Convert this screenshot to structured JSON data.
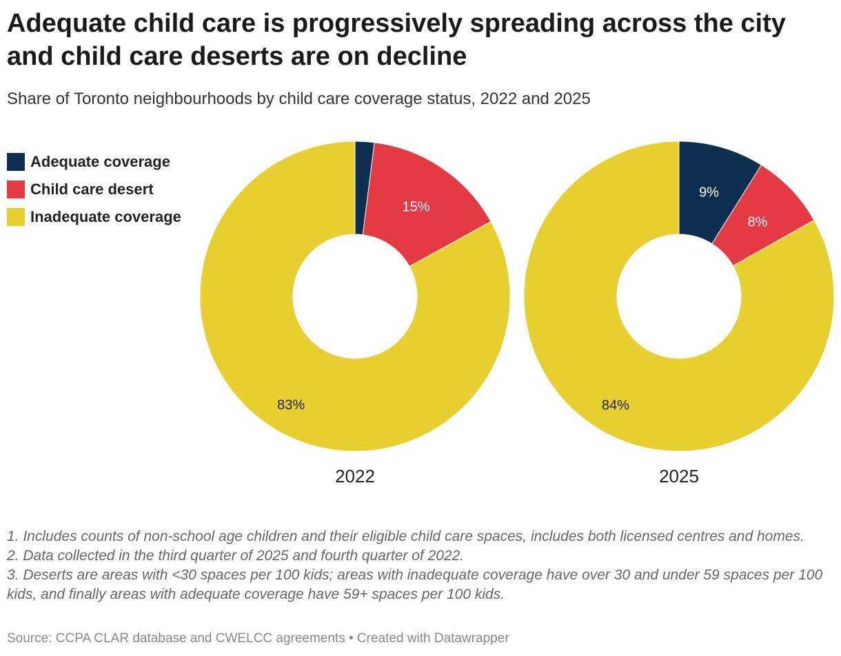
{
  "title": "Adequate child care is progressively spreading across the city and child care deserts are on decline",
  "subtitle": "Share of Toronto neighbourhoods by child care coverage status, 2022 and 2025",
  "legend": [
    {
      "label": "Adequate coverage",
      "color": "#0e2f4f"
    },
    {
      "label": "Child care desert",
      "color": "#e43a43"
    },
    {
      "label": "Inadequate coverage",
      "color": "#e7cf2f"
    }
  ],
  "chart_data": {
    "type": "pie",
    "variant": "donut",
    "categories": [
      "Adequate coverage",
      "Child care desert",
      "Inadequate coverage"
    ],
    "charts": [
      {
        "label": "2022",
        "values": [
          2,
          15,
          83
        ],
        "data_labels": [
          "",
          "15%",
          "83%"
        ]
      },
      {
        "label": "2025",
        "values": [
          9,
          8,
          84
        ],
        "data_labels": [
          "9%",
          "8%",
          "84%"
        ]
      }
    ],
    "legend_position": "left"
  },
  "notes": [
    "1. Includes counts of non-school age children and their eligible child care spaces, includes both licensed centres and homes.",
    "2. Data collected in the third quarter of 2025 and fourth quarter of 2022.",
    "3. Deserts are areas with <30 spaces per 100 kids; areas with inadequate coverage have over 30 and under 59 spaces per 100 kids, and finally areas with adequate coverage have 59+ spaces per 100 kids."
  ],
  "source": "Source: CCPA CLAR database and CWELCC agreements • Created with Datawrapper"
}
